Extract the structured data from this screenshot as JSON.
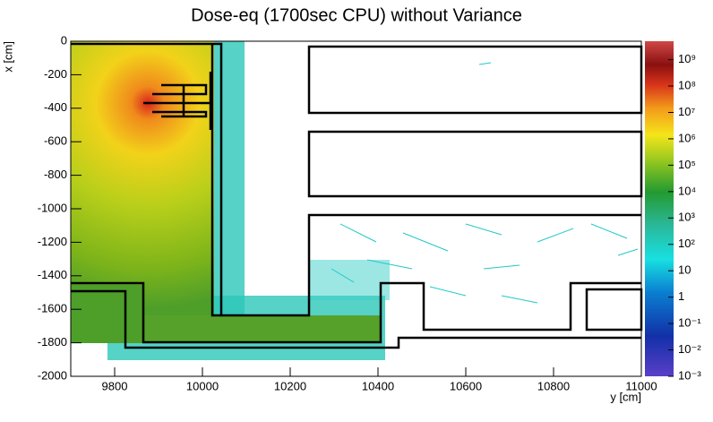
{
  "chart_data": {
    "type": "heatmap",
    "title": "Dose-eq (1700sec CPU) without Variance",
    "xlabel": "y [cm]",
    "ylabel": "x [cm]",
    "xlim": [
      9700,
      11000
    ],
    "xticks": [
      9800,
      10000,
      10200,
      10400,
      10600,
      10800,
      11000
    ],
    "ylim": [
      -2000,
      0
    ],
    "yticks": [
      -2000,
      -1800,
      -1600,
      -1400,
      -1200,
      -1000,
      -800,
      -600,
      -400,
      -200,
      0
    ],
    "zlim": [
      0.001,
      5000000000
    ],
    "zlog": true,
    "zticks": [
      {
        "value": 0.001,
        "label": "10⁻³"
      },
      {
        "value": 0.01,
        "label": "10⁻²"
      },
      {
        "value": 0.1,
        "label": "10⁻¹"
      },
      1,
      10,
      {
        "value": 100,
        "label": "10²"
      },
      {
        "value": 1000,
        "label": "10³"
      },
      {
        "value": 10000,
        "label": "10⁴"
      },
      {
        "value": 100000,
        "label": "10⁵"
      },
      {
        "value": 1000000,
        "label": "10⁶"
      },
      {
        "value": 10000000,
        "label": "10⁷"
      },
      {
        "value": 100000000,
        "label": "10⁸"
      },
      {
        "value": 1000000000,
        "label": "10⁹"
      }
    ]
  }
}
